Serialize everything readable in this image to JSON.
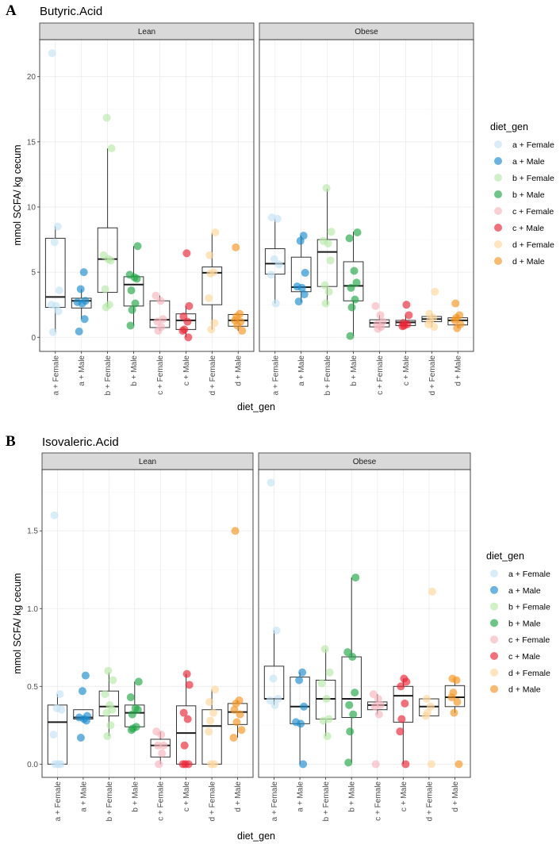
{
  "legend_colors": {
    "a + Female": "#c3e3f5",
    "a + Male": "#1a8ccf",
    "b + Female": "#b5eaa6",
    "b + Male": "#20a845",
    "c + Female": "#f8b5bd",
    "c + Male": "#ec2434",
    "d + Female": "#fdd79b",
    "d + Male": "#f7951f"
  },
  "chart_data": [
    {
      "type": "box",
      "panel_letter": "A",
      "title": "Butyric.Acid",
      "xlabel": "diet_gen",
      "ylabel": "mmol SCFA/ kg cecum",
      "legend_title": "diet_gen",
      "legend_position": "right",
      "grid": true,
      "ylim": [
        -1.08,
        22.84
      ],
      "yticks": [
        0,
        5,
        10,
        15,
        20
      ],
      "ytick_labels": [
        "0",
        "5",
        "10",
        "15",
        "20"
      ],
      "categories": [
        "a + Female",
        "a + Male",
        "b + Female",
        "b + Male",
        "c + Female",
        "c + Male",
        "d + Female",
        "d + Male"
      ],
      "facets": [
        {
          "label": "Lean",
          "groups": [
            {
              "q1": 2.3,
              "median": 3.1,
              "q3": 7.6,
              "whisker_low": 0.4,
              "whisker_high": 8.5,
              "points": [
                21.8,
                8.5,
                7.3,
                3.6,
                2.5,
                2.4,
                2.0,
                0.4
              ]
            },
            {
              "q1": 2.25,
              "median": 2.8,
              "q3": 3.0,
              "whisker_low": 1.4,
              "whisker_high": 3.7,
              "points": [
                5.0,
                3.7,
                2.8,
                2.7,
                2.6,
                1.4,
                0.45
              ]
            },
            {
              "q1": 3.45,
              "median": 6.0,
              "q3": 8.4,
              "whisker_low": 2.3,
              "whisker_high": 14.5,
              "points": [
                16.85,
                14.5,
                6.3,
                6.0,
                5.9,
                3.7,
                2.5,
                2.3
              ]
            },
            {
              "q1": 2.4,
              "median": 4.05,
              "q3": 4.65,
              "whisker_low": 0.9,
              "whisker_high": 7.0,
              "points": [
                7.0,
                4.8,
                4.6,
                4.5,
                3.6,
                2.6,
                2.1,
                0.9
              ]
            },
            {
              "q1": 0.75,
              "median": 1.35,
              "q3": 2.8,
              "whisker_low": 0.5,
              "whisker_high": 3.2,
              "points": [
                3.2,
                2.8,
                1.4,
                1.2,
                0.8,
                0.5
              ]
            },
            {
              "q1": 0.6,
              "median": 1.3,
              "q3": 1.8,
              "whisker_low": 0.0,
              "whisker_high": 2.4,
              "points": [
                6.45,
                2.4,
                1.6,
                1.2,
                0.6,
                0.5,
                0.0
              ]
            },
            {
              "q1": 2.5,
              "median": 4.95,
              "q3": 5.4,
              "whisker_low": 0.6,
              "whisker_high": 8.0,
              "points": [
                8.05,
                6.3,
                5.0,
                4.9,
                3.0,
                1.1,
                0.6
              ]
            },
            {
              "q1": 0.85,
              "median": 1.3,
              "q3": 1.75,
              "whisker_low": 0.5,
              "whisker_high": 1.8,
              "points": [
                6.9,
                1.8,
                1.6,
                1.3,
                1.2,
                0.9,
                0.5
              ]
            }
          ]
        },
        {
          "label": "Obese",
          "groups": [
            {
              "q1": 4.85,
              "median": 5.65,
              "q3": 6.8,
              "whisker_low": 2.6,
              "whisker_high": 9.1,
              "points": [
                9.2,
                9.1,
                6.0,
                5.6,
                4.8,
                2.6
              ]
            },
            {
              "q1": 3.5,
              "median": 3.85,
              "q3": 6.15,
              "whisker_low": 2.7,
              "whisker_high": 7.8,
              "points": [
                7.8,
                7.4,
                4.95,
                3.9,
                3.8,
                3.3,
                2.75
              ]
            },
            {
              "q1": 3.9,
              "median": 6.55,
              "q3": 7.5,
              "whisker_low": 2.5,
              "whisker_high": 11.4,
              "points": [
                11.45,
                8.1,
                7.4,
                7.2,
                5.9,
                4.0,
                3.5,
                2.6
              ]
            },
            {
              "q1": 2.8,
              "median": 3.95,
              "q3": 5.8,
              "whisker_low": 0.1,
              "whisker_high": 8.1,
              "points": [
                8.05,
                7.6,
                5.1,
                4.2,
                3.8,
                2.9,
                2.3,
                0.1
              ]
            },
            {
              "q1": 0.8,
              "median": 1.1,
              "q3": 1.35,
              "whisker_low": 0.6,
              "whisker_high": 1.7,
              "points": [
                2.4,
                1.7,
                1.2,
                1.0,
                0.8,
                0.65
              ]
            },
            {
              "q1": 0.9,
              "median": 1.15,
              "q3": 1.3,
              "whisker_low": 0.8,
              "whisker_high": 1.7,
              "points": [
                2.5,
                1.7,
                1.1,
                1.0,
                0.9,
                0.85
              ]
            },
            {
              "q1": 1.2,
              "median": 1.4,
              "q3": 1.6,
              "whisker_low": 0.8,
              "whisker_high": 1.8,
              "points": [
                3.5,
                1.8,
                1.5,
                1.3,
                1.0,
                0.8
              ]
            },
            {
              "q1": 0.95,
              "median": 1.3,
              "q3": 1.5,
              "whisker_low": 0.7,
              "whisker_high": 1.7,
              "points": [
                2.6,
                1.7,
                1.5,
                1.3,
                1.0,
                0.7
              ]
            }
          ]
        }
      ]
    },
    {
      "type": "box",
      "panel_letter": "B",
      "title": "Isovaleric.Acid",
      "xlabel": "diet_gen",
      "ylabel": "mmol SCFA/ kg cecum",
      "legend_title": "diet_gen",
      "legend_position": "right",
      "grid": true,
      "ylim": [
        -0.085,
        1.894
      ],
      "yticks": [
        0,
        0.5,
        1.0,
        1.5
      ],
      "ytick_labels": [
        "0.0",
        "0.5",
        "1.0",
        "1.5"
      ],
      "categories": [
        "a + Female",
        "a + Male",
        "b + Female",
        "b + Male",
        "c + Female",
        "c + Male",
        "d + Female",
        "d + Male"
      ],
      "facets": [
        {
          "label": "Lean",
          "groups": [
            {
              "q1": 0.0,
              "median": 0.27,
              "q3": 0.38,
              "whisker_low": 0.0,
              "whisker_high": 0.45,
              "points": [
                1.6,
                0.45,
                0.36,
                0.35,
                0.19,
                0.0,
                0.0,
                0.0
              ]
            },
            {
              "q1": 0.29,
              "median": 0.3,
              "q3": 0.35,
              "whisker_low": 0.28,
              "whisker_high": 0.35,
              "points": [
                0.57,
                0.47,
                0.31,
                0.3,
                0.29,
                0.28,
                0.17
              ]
            },
            {
              "q1": 0.31,
              "median": 0.37,
              "q3": 0.47,
              "whisker_low": 0.18,
              "whisker_high": 0.59,
              "points": [
                0.6,
                0.54,
                0.45,
                0.38,
                0.35,
                0.33,
                0.25,
                0.18
              ]
            },
            {
              "q1": 0.24,
              "median": 0.33,
              "q3": 0.38,
              "whisker_low": 0.22,
              "whisker_high": 0.53,
              "points": [
                0.53,
                0.43,
                0.36,
                0.35,
                0.32,
                0.24,
                0.23,
                0.22
              ]
            },
            {
              "q1": 0.046,
              "median": 0.12,
              "q3": 0.16,
              "whisker_low": 0.0,
              "whisker_high": 0.21,
              "points": [
                0.21,
                0.19,
                0.12,
                0.12,
                0.07,
                0.0
              ]
            },
            {
              "q1": 0.0,
              "median": 0.2,
              "q3": 0.375,
              "whisker_low": 0.0,
              "whisker_high": 0.58,
              "points": [
                0.58,
                0.51,
                0.33,
                0.29,
                0.12,
                0.0,
                0.0,
                0.0
              ]
            },
            {
              "q1": 0.0,
              "median": 0.245,
              "q3": 0.35,
              "whisker_low": 0.0,
              "whisker_high": 0.48,
              "points": [
                0.48,
                0.4,
                0.33,
                0.28,
                0.21,
                0.0,
                0.0
              ]
            },
            {
              "q1": 0.255,
              "median": 0.335,
              "q3": 0.39,
              "whisker_low": 0.17,
              "whisker_high": 0.41,
              "points": [
                1.5,
                0.41,
                0.39,
                0.35,
                0.32,
                0.27,
                0.22,
                0.17
              ]
            }
          ]
        },
        {
          "label": "Obese",
          "groups": [
            {
              "q1": 0.42,
              "median": 0.42,
              "q3": 0.63,
              "whisker_low": 0.38,
              "whisker_high": 0.86,
              "points": [
                1.81,
                0.86,
                0.55,
                0.42,
                0.41,
                0.38
              ]
            },
            {
              "q1": 0.26,
              "median": 0.37,
              "q3": 0.56,
              "whisker_low": 0.0,
              "whisker_high": 0.59,
              "points": [
                0.59,
                0.54,
                0.37,
                0.27,
                0.26,
                0.0
              ]
            },
            {
              "q1": 0.29,
              "median": 0.42,
              "q3": 0.54,
              "whisker_low": 0.18,
              "whisker_high": 0.74,
              "points": [
                0.74,
                0.59,
                0.52,
                0.42,
                0.29,
                0.28,
                0.18
              ]
            },
            {
              "q1": 0.3,
              "median": 0.42,
              "q3": 0.69,
              "whisker_low": 0.01,
              "whisker_high": 1.2,
              "points": [
                1.2,
                0.72,
                0.69,
                0.46,
                0.38,
                0.32,
                0.21,
                0.01
              ]
            },
            {
              "q1": 0.35,
              "median": 0.38,
              "q3": 0.4,
              "whisker_low": 0.32,
              "whisker_high": 0.45,
              "points": [
                0.45,
                0.42,
                0.38,
                0.37,
                0.32,
                0.0
              ]
            },
            {
              "q1": 0.27,
              "median": 0.44,
              "q3": 0.5,
              "whisker_low": 0.0,
              "whisker_high": 0.55,
              "points": [
                0.55,
                0.53,
                0.5,
                0.39,
                0.29,
                0.21,
                0.0
              ]
            },
            {
              "q1": 0.31,
              "median": 0.37,
              "q3": 0.42,
              "whisker_low": 0.31,
              "whisker_high": 0.42,
              "points": [
                1.11,
                0.42,
                0.37,
                0.33,
                0.31,
                0.0
              ]
            },
            {
              "q1": 0.37,
              "median": 0.43,
              "q3": 0.505,
              "whisker_low": 0.33,
              "whisker_high": 0.55,
              "points": [
                0.55,
                0.54,
                0.46,
                0.43,
                0.4,
                0.33,
                0.0
              ]
            }
          ]
        }
      ]
    }
  ]
}
